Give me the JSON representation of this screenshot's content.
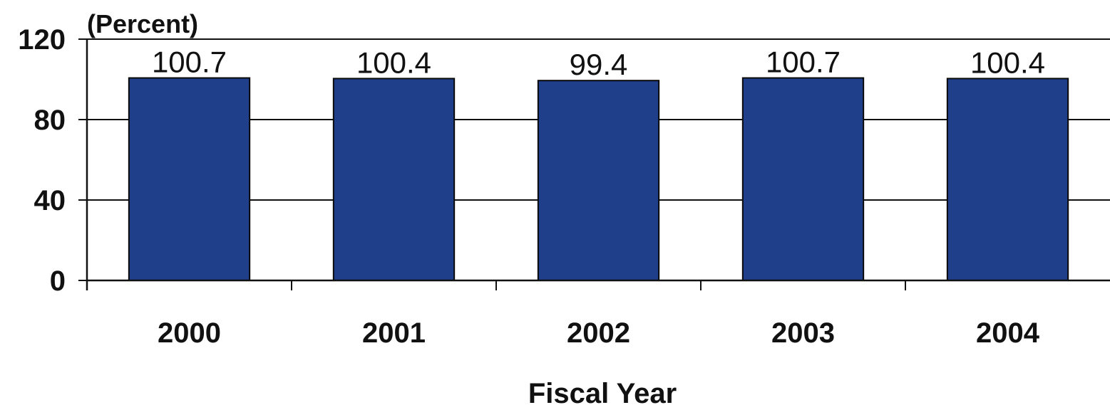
{
  "chart_data": {
    "type": "bar",
    "title": "",
    "unit_label": "(Percent)",
    "xlabel": "Fiscal Year",
    "ylabel": "",
    "categories": [
      "2000",
      "2001",
      "2002",
      "2003",
      "2004"
    ],
    "values": [
      100.7,
      100.4,
      99.4,
      100.7,
      100.4
    ],
    "value_labels": [
      "100.7",
      "100.4",
      "99.4",
      "100.7",
      "100.4"
    ],
    "ylim": [
      0,
      120
    ],
    "y_ticks": [
      "0",
      "40",
      "80",
      "120"
    ],
    "grid": true,
    "legend": "none",
    "bar_color": "#1f3f8a",
    "bar_edge_color": "#0a0a0a"
  }
}
